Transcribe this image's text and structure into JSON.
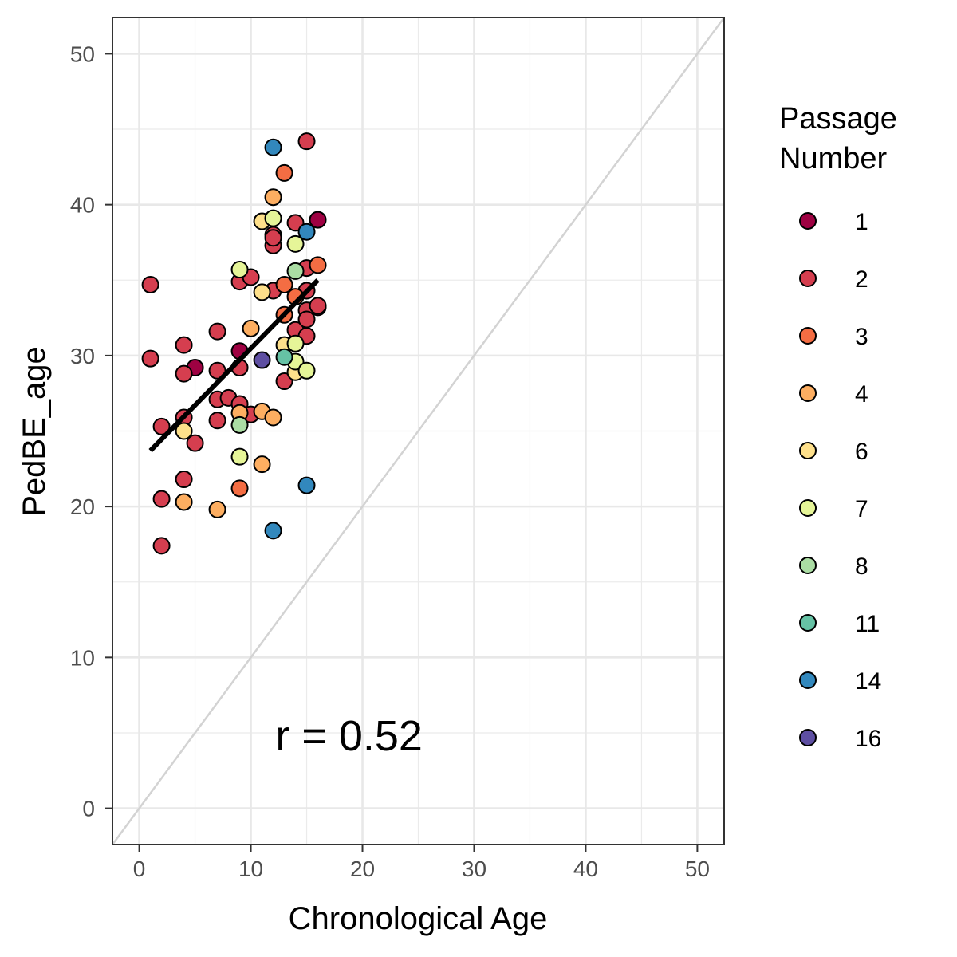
{
  "chart_data": {
    "type": "scatter",
    "xlabel": "Chronological Age",
    "ylabel": "PedBE_age",
    "xlim": [
      -2.4,
      52.4
    ],
    "ylim": [
      -2.4,
      52.4
    ],
    "xticks": [
      0,
      10,
      20,
      30,
      40,
      50
    ],
    "yticks": [
      0,
      10,
      20,
      30,
      40,
      50
    ],
    "grid": true,
    "annotation": {
      "text": "r =  0.52",
      "x": 12.2,
      "y": 4.8
    },
    "identity_line": {
      "from": [
        -2.4,
        -2.4
      ],
      "to": [
        52.4,
        52.4
      ],
      "color": "#d3d3d3"
    },
    "fit_line": {
      "x": [
        1,
        16
      ],
      "y": [
        23.7,
        35.0
      ],
      "color": "#000000"
    },
    "legend": {
      "title": [
        "Passage",
        "Number"
      ],
      "placement": "right",
      "entries": [
        {
          "label": "1",
          "color": "#9e0142"
        },
        {
          "label": "2",
          "color": "#d53e4f"
        },
        {
          "label": "3",
          "color": "#f46d43"
        },
        {
          "label": "4",
          "color": "#fdae61"
        },
        {
          "label": "6",
          "color": "#fee08b"
        },
        {
          "label": "7",
          "color": "#e6f598"
        },
        {
          "label": "8",
          "color": "#abdda4"
        },
        {
          "label": "11",
          "color": "#66c2a5"
        },
        {
          "label": "14",
          "color": "#3288bd"
        },
        {
          "label": "16",
          "color": "#5e4fa2"
        }
      ]
    },
    "series": [
      {
        "name": "1",
        "points": [
          [
            5,
            29.2
          ],
          [
            9,
            30.3
          ],
          [
            16,
            39.0
          ],
          [
            16,
            33.2
          ]
        ]
      },
      {
        "name": "2",
        "points": [
          [
            1,
            34.7
          ],
          [
            1,
            29.8
          ],
          [
            2,
            25.3
          ],
          [
            2,
            20.5
          ],
          [
            2,
            17.4
          ],
          [
            4,
            30.7
          ],
          [
            4,
            28.8
          ],
          [
            4,
            25.9
          ],
          [
            4,
            21.8
          ],
          [
            5,
            24.2
          ],
          [
            7,
            31.6
          ],
          [
            7,
            29.0
          ],
          [
            7,
            27.1
          ],
          [
            7,
            25.7
          ],
          [
            8,
            27.2
          ],
          [
            9,
            34.9
          ],
          [
            9,
            29.2
          ],
          [
            9,
            26.8
          ],
          [
            10,
            35.2
          ],
          [
            10,
            26.1
          ],
          [
            12,
            38.0
          ],
          [
            12,
            37.3
          ],
          [
            12,
            37.8
          ],
          [
            12,
            34.3
          ],
          [
            13,
            28.3
          ],
          [
            14,
            38.8
          ],
          [
            14,
            31.7
          ],
          [
            15,
            44.2
          ],
          [
            15,
            35.8
          ],
          [
            15,
            34.3
          ],
          [
            15,
            33.0
          ],
          [
            15,
            32.4
          ],
          [
            15,
            31.3
          ],
          [
            16,
            33.3
          ]
        ]
      },
      {
        "name": "3",
        "points": [
          [
            13,
            42.1
          ],
          [
            13,
            34.7
          ],
          [
            13,
            32.7
          ],
          [
            14,
            33.9
          ],
          [
            16,
            36.0
          ],
          [
            9,
            21.2
          ]
        ]
      },
      {
        "name": "4",
        "points": [
          [
            12,
            40.5
          ],
          [
            10,
            31.8
          ],
          [
            9,
            26.2
          ],
          [
            11,
            26.3
          ],
          [
            12,
            25.9
          ],
          [
            11,
            22.8
          ],
          [
            4,
            20.3
          ],
          [
            7,
            19.8
          ]
        ]
      },
      {
        "name": "6",
        "points": [
          [
            11,
            38.9
          ],
          [
            11,
            34.2
          ],
          [
            13,
            30.7
          ],
          [
            4,
            25.0
          ],
          [
            14,
            28.9
          ]
        ]
      },
      {
        "name": "7",
        "points": [
          [
            12,
            39.1
          ],
          [
            14,
            37.4
          ],
          [
            9,
            35.7
          ],
          [
            14,
            30.8
          ],
          [
            14,
            29.6
          ],
          [
            15,
            29.0
          ],
          [
            9,
            23.3
          ]
        ]
      },
      {
        "name": "8",
        "points": [
          [
            14,
            35.6
          ],
          [
            9,
            25.4
          ]
        ]
      },
      {
        "name": "11",
        "points": [
          [
            13,
            29.9
          ]
        ]
      },
      {
        "name": "14",
        "points": [
          [
            12,
            43.8
          ],
          [
            15,
            38.2
          ],
          [
            15,
            21.4
          ],
          [
            12,
            18.4
          ]
        ]
      },
      {
        "name": "16",
        "points": [
          [
            11,
            29.7
          ]
        ]
      }
    ]
  }
}
